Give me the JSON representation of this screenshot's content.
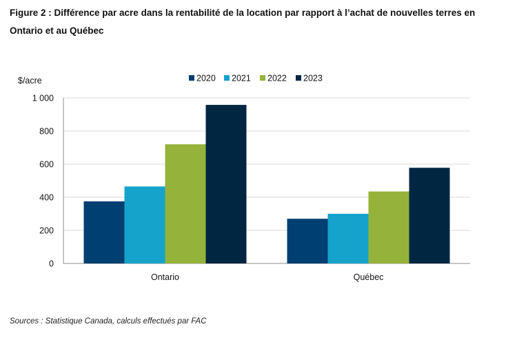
{
  "figure_title": "Figure 2 : Différence par acre dans la rentabilité de la location par rapport à l’achat de nouvelles terres en Ontario et au Québec",
  "source": "Sources : Statistique Canada, calculs effectués par FAC",
  "colors": {
    "2020": "#003f72",
    "2021": "#15a3cc",
    "2022": "#95b33a",
    "2023": "#002642"
  },
  "chart_data": {
    "type": "bar",
    "title": "Figure 2 : Différence par acre dans la rentabilité de la location par rapport à l’achat de nouvelles terres en Ontario et au Québec",
    "ylabel": "$/acre",
    "xlabel": "",
    "categories": [
      "Ontario",
      "Québec"
    ],
    "series": [
      {
        "name": "2020",
        "values": [
          375,
          270
        ]
      },
      {
        "name": "2021",
        "values": [
          465,
          300
        ]
      },
      {
        "name": "2022",
        "values": [
          720,
          435
        ]
      },
      {
        "name": "2023",
        "values": [
          958,
          578
        ]
      }
    ],
    "ylim": [
      0,
      1000
    ],
    "yticks": [
      0,
      200,
      400,
      600,
      800,
      1000
    ],
    "ytick_labels": [
      "0",
      "200",
      "400",
      "600",
      "800",
      "1 000"
    ],
    "grid": true,
    "legend": "top"
  }
}
